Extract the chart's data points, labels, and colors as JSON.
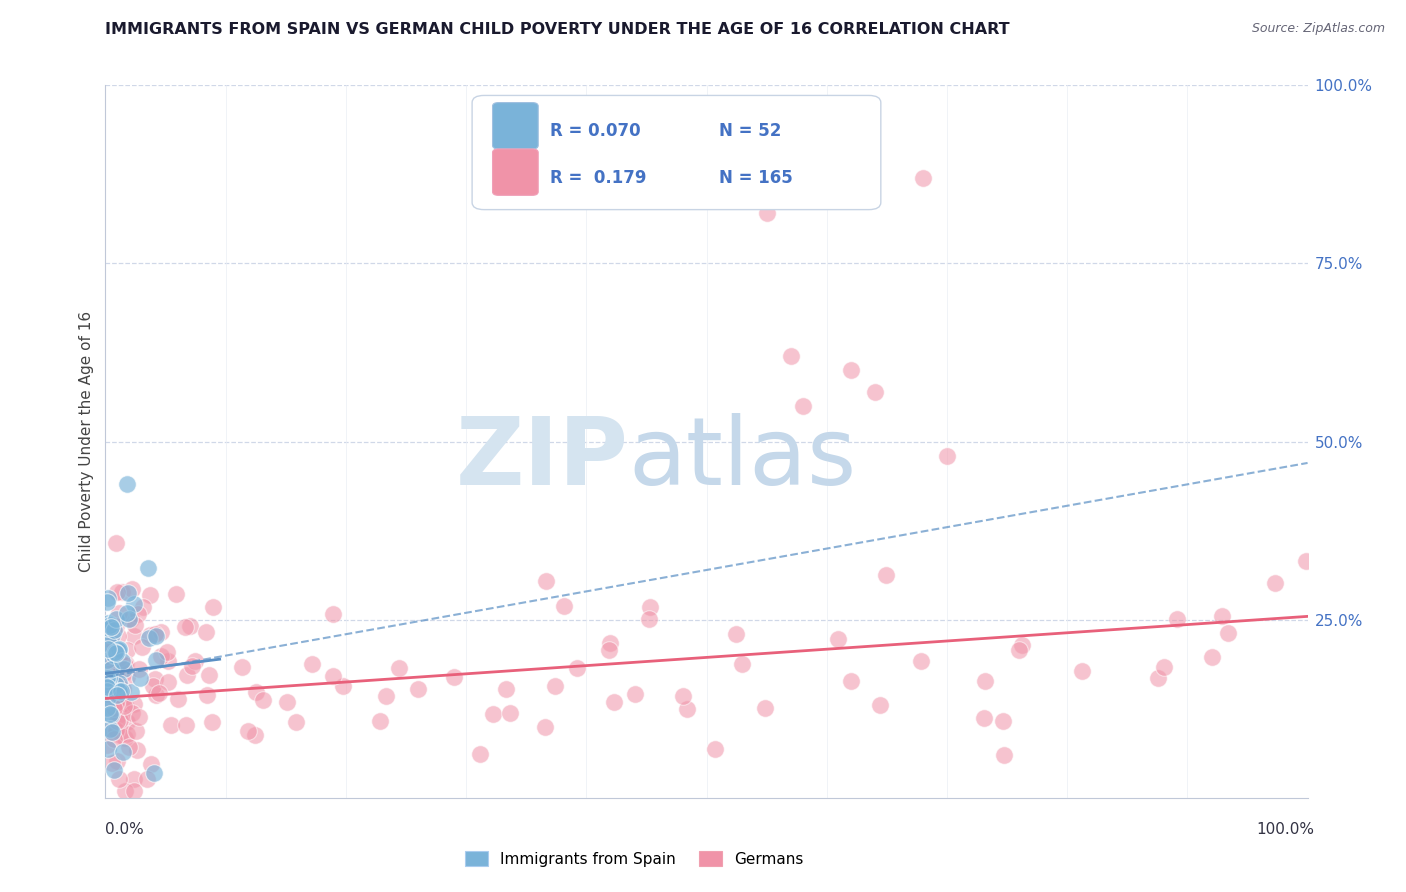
{
  "title": "IMMIGRANTS FROM SPAIN VS GERMAN CHILD POVERTY UNDER THE AGE OF 16 CORRELATION CHART",
  "source": "Source: ZipAtlas.com",
  "ylabel": "Child Poverty Under the Age of 16",
  "stat_box": {
    "blue_r": "0.070",
    "blue_n": "52",
    "pink_r": "0.179",
    "pink_n": "165"
  },
  "blue_color": "#7ab3d9",
  "pink_color": "#f093a8",
  "blue_trend_color": "#5a8fc4",
  "pink_trend_color": "#e8607a",
  "background_color": "#ffffff",
  "grid_color": "#d0d8e8",
  "right_tick_color": "#4472c4",
  "watermark_zip_color": "#d5e4f0",
  "watermark_atlas_color": "#c5d8ea"
}
